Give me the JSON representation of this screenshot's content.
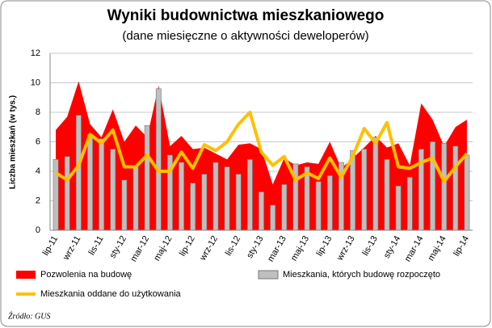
{
  "chart_data": {
    "type": "combo",
    "title": "Wyniki budownictwa mieszkaniowego",
    "subtitle": "(dane miesięczne o aktywności deweloperów)",
    "y_label": "Liczba mieszkań (w tys.)",
    "source": "Źródło: GUS",
    "categories": [
      "lip-11",
      null,
      "wrz-11",
      null,
      "lis-11",
      null,
      "sty-12",
      null,
      "mar-12",
      null,
      "maj-12",
      null,
      "lip-12",
      null,
      "wrz-12",
      null,
      "lis-12",
      null,
      "sty-13",
      null,
      "mar-13",
      null,
      "maj-13",
      null,
      "lip-13",
      null,
      "wrz-13",
      null,
      "lis-13",
      null,
      "sty-14",
      null,
      "mar-14",
      null,
      "maj-14",
      null,
      "lip-14"
    ],
    "ylim": [
      0,
      12
    ],
    "yticks": [
      0,
      2,
      4,
      6,
      8,
      10,
      12
    ],
    "grid": true,
    "series": [
      {
        "name": "Pozwolenia na budowę",
        "kind": "area",
        "color": "#ff0000",
        "values": [
          6.8,
          7.7,
          10.1,
          7.2,
          6.3,
          8.2,
          6.0,
          7.1,
          6.3,
          9.8,
          5.7,
          6.4,
          5.5,
          5.6,
          5.2,
          4.8,
          5.8,
          5.9,
          5.5,
          3.1,
          4.9,
          4.4,
          4.6,
          4.5,
          6.0,
          4.2,
          4.9,
          5.6,
          6.4,
          5.6,
          5.9,
          4.4,
          8.6,
          7.5,
          5.7,
          7.0,
          7.5
        ]
      },
      {
        "name": "Mieszkania, których budowę rozpoczęto",
        "kind": "bar",
        "color": "#bfbfbf",
        "values": [
          4.8,
          5.0,
          7.8,
          6.5,
          6.2,
          5.5,
          3.4,
          4.3,
          7.1,
          9.6,
          5.1,
          4.6,
          3.2,
          3.8,
          4.6,
          4.3,
          3.8,
          4.8,
          2.6,
          1.7,
          3.1,
          4.5,
          4.3,
          3.3,
          3.7,
          4.6,
          5.4,
          5.5,
          6.3,
          4.8,
          3.0,
          3.6,
          5.5,
          6.0,
          5.9,
          5.7,
          5.1
        ]
      },
      {
        "name": "Mieszkania oddane do użytkowania",
        "kind": "line",
        "color": "#ffc000",
        "values": [
          3.9,
          3.4,
          4.4,
          6.5,
          5.9,
          6.8,
          4.3,
          4.3,
          5.1,
          4.0,
          4.0,
          5.3,
          4.2,
          5.8,
          5.4,
          6.0,
          7.2,
          8.0,
          5.3,
          4.4,
          5.0,
          3.4,
          3.9,
          3.5,
          4.9,
          3.6,
          5.0,
          6.9,
          5.9,
          7.3,
          4.3,
          4.2,
          4.6,
          4.9,
          3.3,
          4.3,
          5.2
        ]
      }
    ]
  }
}
